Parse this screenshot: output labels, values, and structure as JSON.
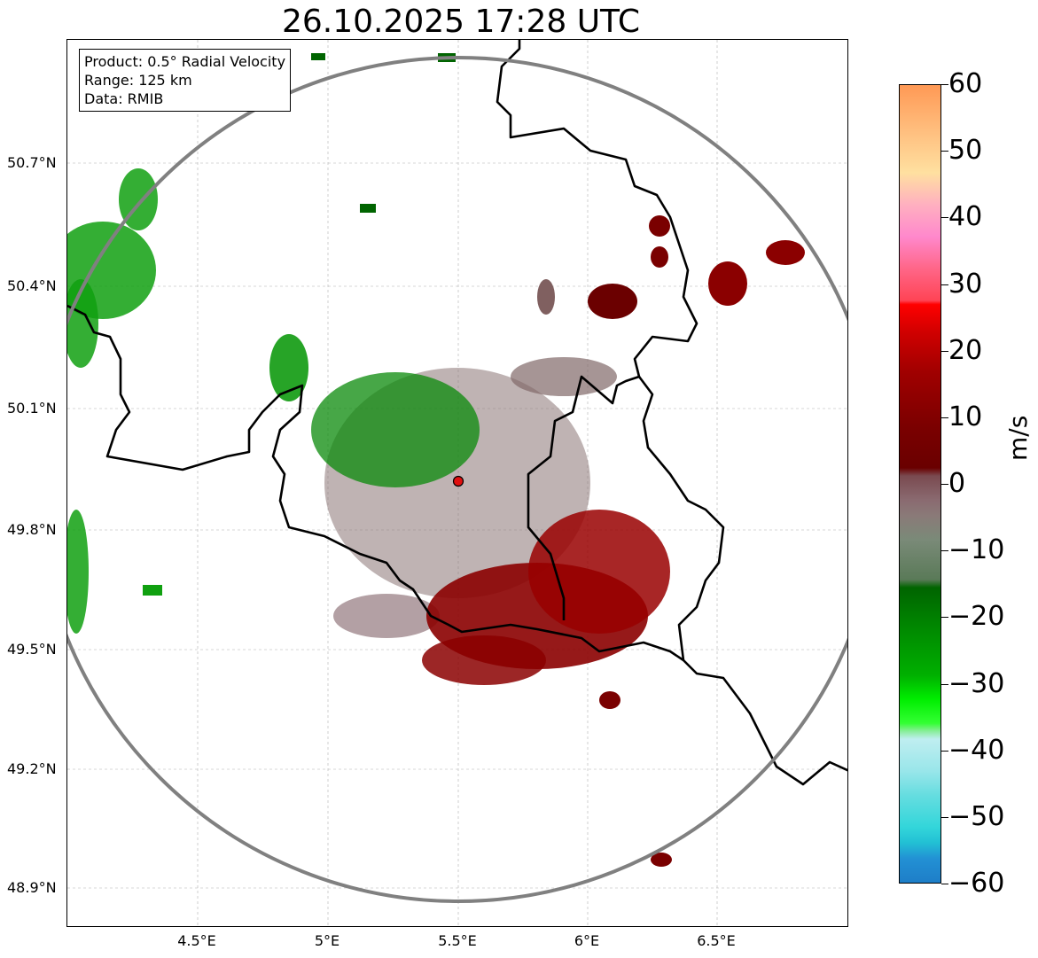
{
  "title": "26.10.2025 17:28 UTC",
  "info": {
    "product": "Product: 0.5° Radial Velocity",
    "range": "Range: 125 km",
    "source": "Data: RMIB"
  },
  "axes": {
    "y_ticks": [
      "50.7°N",
      "50.4°N",
      "50.1°N",
      "49.8°N",
      "49.5°N",
      "49.2°N",
      "48.9°N"
    ],
    "x_ticks": [
      "4.5°E",
      "5°E",
      "5.5°E",
      "6°E",
      "6.5°E"
    ]
  },
  "colorbar": {
    "label": "m/s",
    "min": -60,
    "max": 60,
    "ticks": [
      "60",
      "50",
      "40",
      "30",
      "20",
      "10",
      "0",
      "−10",
      "−20",
      "−30",
      "−40",
      "−50",
      "−60"
    ],
    "tick_values": [
      60,
      50,
      40,
      30,
      20,
      10,
      0,
      -10,
      -20,
      -30,
      -40,
      -50,
      -60
    ]
  },
  "map": {
    "radar_site": "red-dot",
    "range_ring_color": "#808080",
    "border_color": "#000000"
  },
  "colors": {
    "positive": "#8b0000",
    "negative": "#008b00",
    "near_zero": "#8a7070"
  }
}
